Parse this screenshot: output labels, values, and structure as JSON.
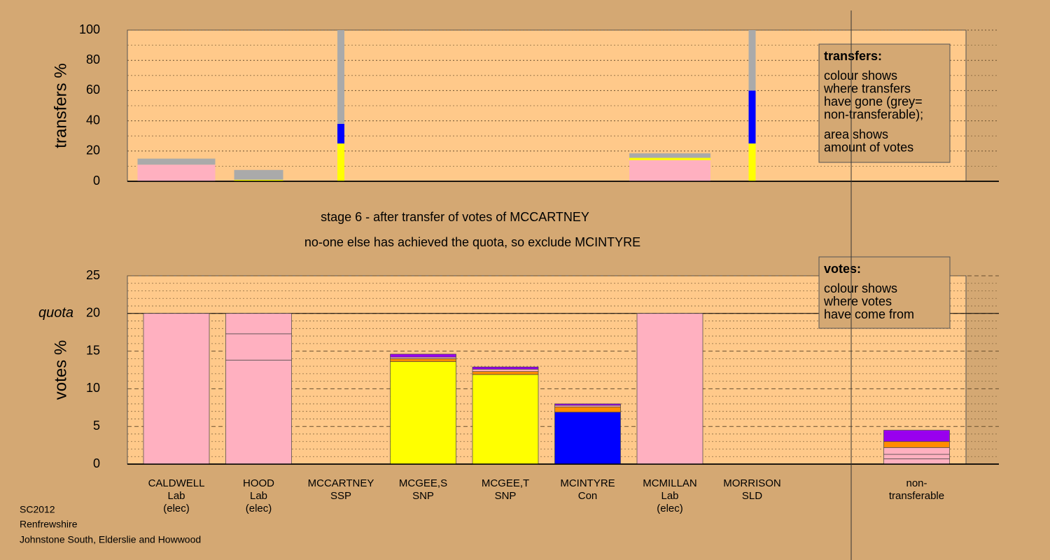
{
  "chart_data": [
    {
      "type": "bar",
      "stacked": true,
      "ylabel": "transfers %",
      "ylim": [
        0,
        100
      ],
      "yticks": [
        0,
        20,
        40,
        60,
        80,
        100
      ],
      "minor_yticks": [
        10,
        30,
        50,
        70,
        90
      ],
      "major_grid": "dotted",
      "bar_widths": [
        111,
        70,
        10,
        null,
        null,
        null,
        116,
        10,
        null,
        null
      ],
      "series": [
        {
          "color": "#ffb0c0",
          "values": [
            11,
            0,
            0,
            null,
            null,
            null,
            14,
            0,
            null,
            null
          ]
        },
        {
          "color": "#ffff00",
          "values": [
            0,
            1,
            25,
            null,
            null,
            null,
            1.5,
            25,
            null,
            null
          ]
        },
        {
          "color": "#0000ff",
          "values": [
            0,
            0,
            13,
            null,
            null,
            null,
            0,
            35,
            null,
            null
          ]
        },
        {
          "color": "#aaaaaa",
          "values": [
            4,
            6.5,
            62,
            null,
            null,
            null,
            3,
            40,
            null,
            null
          ]
        }
      ],
      "legend": {
        "title": "transfers:",
        "paragraphs": [
          [
            "colour shows",
            "where transfers",
            "have gone (grey=",
            "non-transferable);"
          ],
          [
            "area shows",
            "amount of votes"
          ]
        ]
      }
    },
    {
      "type": "bar",
      "stacked": true,
      "ylabel": "votes %",
      "categories": [
        [
          "CALDWELL",
          "Lab",
          "(elec)"
        ],
        [
          "HOOD",
          "Lab",
          "(elec)"
        ],
        [
          "MCCARTNEY",
          "SSP"
        ],
        [
          "MCGEE,S",
          "SNP"
        ],
        [
          "MCGEE,T",
          "SNP"
        ],
        [
          "MCINTYRE",
          "Con"
        ],
        [
          "MCMILLAN",
          "Lab",
          "(elec)"
        ],
        [
          "MORRISON",
          "SLD"
        ],
        null,
        [
          "non-",
          "transferable"
        ]
      ],
      "ylim": [
        0,
        25
      ],
      "yticks": [
        0,
        5,
        10,
        15,
        20,
        25
      ],
      "minor_yticks": [
        1,
        2,
        3,
        4,
        6,
        7,
        8,
        9,
        11,
        12,
        13,
        14,
        16,
        17,
        18,
        19,
        21,
        22,
        23,
        24
      ],
      "major_grid": "dashed",
      "quota": {
        "value": 20,
        "label": "quota"
      },
      "stacks": [
        [
          {
            "value": 20,
            "color": "#ffb0c0"
          }
        ],
        [
          {
            "value": 13.8,
            "color": "#ffb0c0"
          },
          {
            "value": 3.5,
            "color": "#ffb0c0"
          },
          {
            "value": 2.7,
            "color": "#ffb0c0"
          }
        ],
        [],
        [
          {
            "value": 13.6,
            "color": "#ffff00"
          },
          {
            "value": 0.4,
            "color": "#ff8c00"
          },
          {
            "value": 0.2,
            "color": "#ffb0c0"
          },
          {
            "value": 0.4,
            "color": "#9900ee"
          }
        ],
        [
          {
            "value": 11.9,
            "color": "#ffff00"
          },
          {
            "value": 0.4,
            "color": "#ff8c00"
          },
          {
            "value": 0.3,
            "color": "#ffb0c0"
          },
          {
            "value": 0.3,
            "color": "#9900ee"
          }
        ],
        [
          {
            "value": 6.9,
            "color": "#0000ff"
          },
          {
            "value": 0.7,
            "color": "#ff8c00"
          },
          {
            "value": 0.2,
            "color": "#ffb0c0"
          },
          {
            "value": 0.2,
            "color": "#9900ee"
          }
        ],
        [
          {
            "value": 20,
            "color": "#ffb0c0"
          }
        ],
        [],
        [],
        [
          {
            "value": 0.7,
            "color": "#ffb0c0"
          },
          {
            "value": 0.6,
            "color": "#ffb0c0"
          },
          {
            "value": 0.9,
            "color": "#ffb0c0"
          },
          {
            "value": 0.8,
            "color": "#ff8c00"
          },
          {
            "value": 1.5,
            "color": "#9900ee"
          }
        ]
      ],
      "legend": {
        "title": "votes:",
        "paragraphs": [
          [
            "colour shows",
            "where votes",
            "have come from"
          ]
        ]
      }
    }
  ],
  "notes": [
    "stage 6 - after transfer of votes of MCCARTNEY",
    "no-one else has achieved the quota, so exclude MCINTYRE"
  ],
  "footer": [
    "SC2012",
    "Renfrewshire",
    "Johnstone South, Elderslie and Howwood"
  ]
}
